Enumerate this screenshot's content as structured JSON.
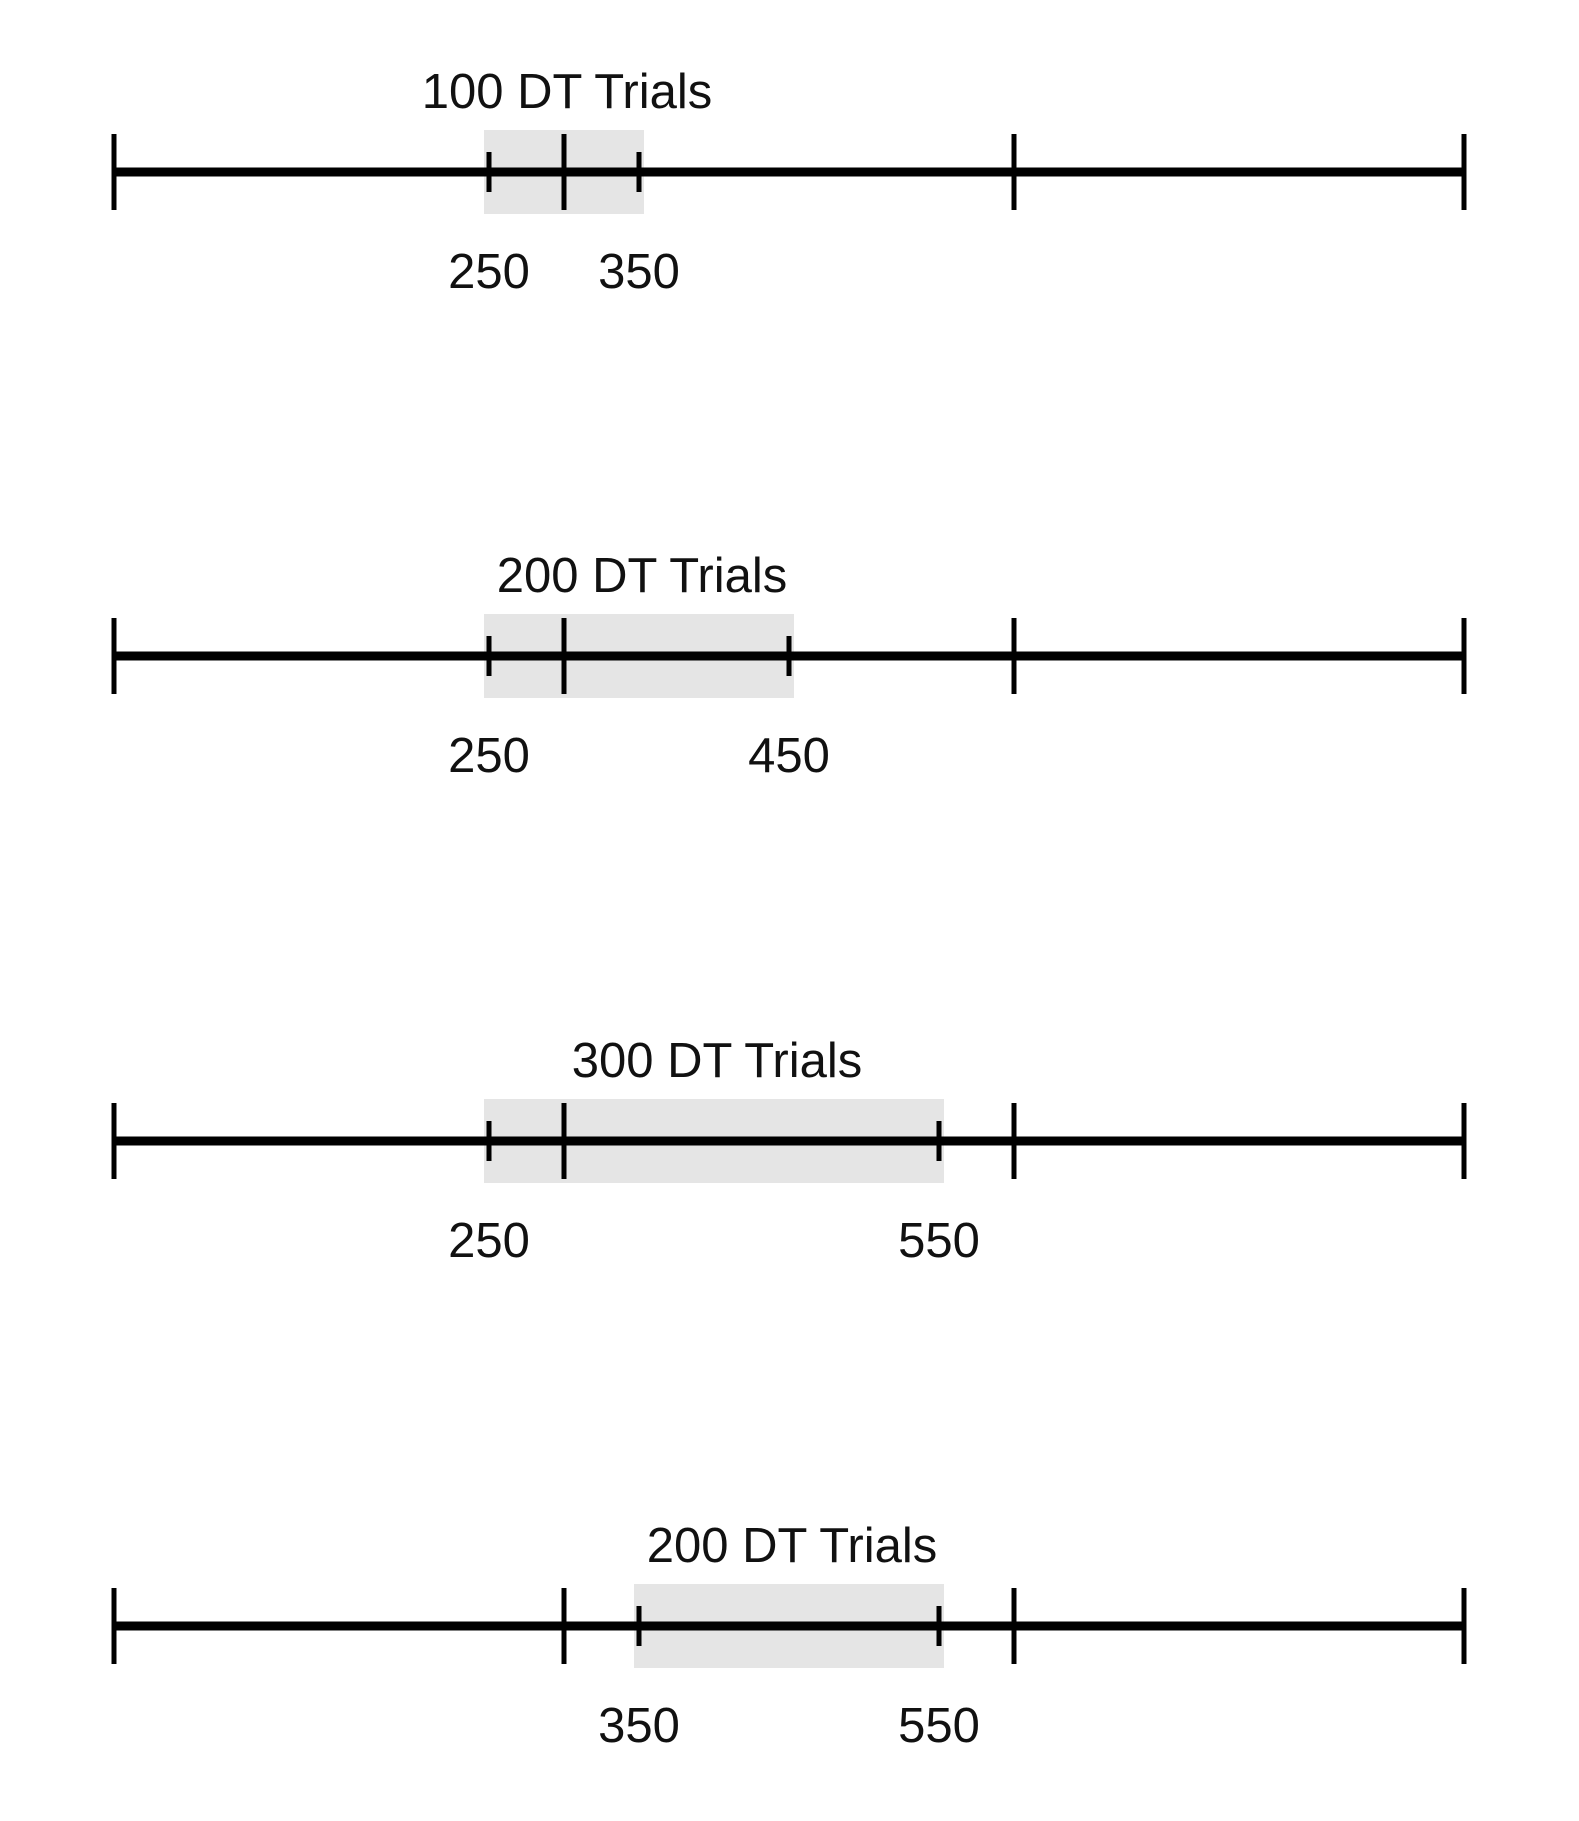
{
  "colors": {
    "window_fill": "#e5e5e5",
    "line": "#000000",
    "text": "#111111"
  },
  "timelines": [
    {
      "label": "100 DT Trials",
      "window_start": 250,
      "window_end": 350,
      "start_label": "250",
      "end_label": "350"
    },
    {
      "label": "200 DT Trials",
      "window_start": 250,
      "window_end": 450,
      "start_label": "250",
      "end_label": "450"
    },
    {
      "label": "300 DT Trials",
      "window_start": 250,
      "window_end": 550,
      "start_label": "250",
      "end_label": "550"
    },
    {
      "label": "200 DT Trials",
      "window_start": 350,
      "window_end": 550,
      "start_label": "350",
      "end_label": "550"
    }
  ]
}
